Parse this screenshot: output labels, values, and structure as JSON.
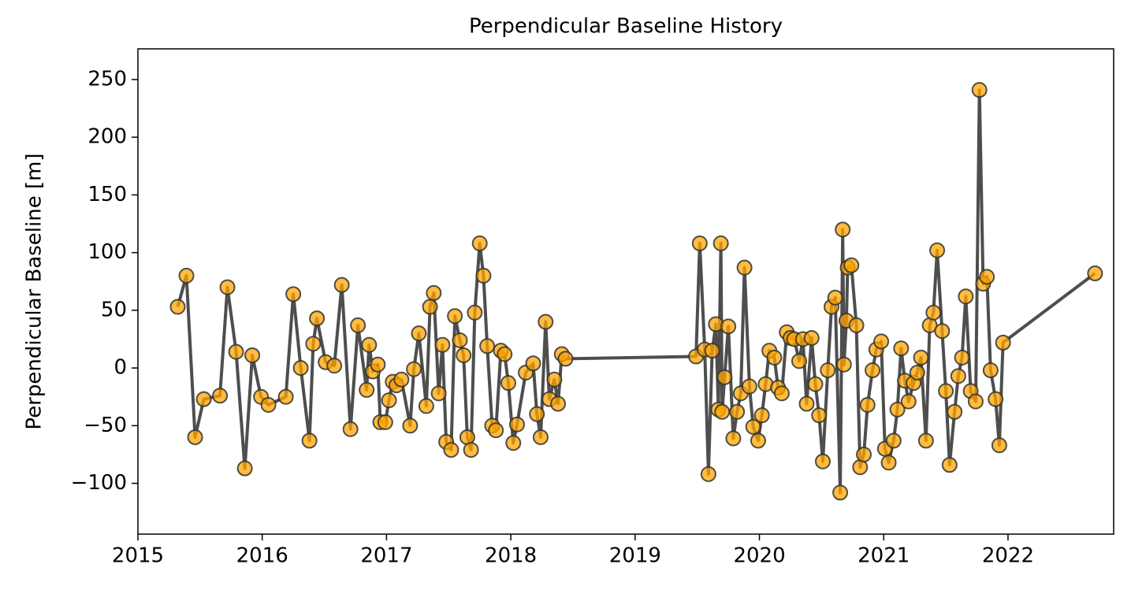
{
  "chart_data": {
    "type": "line",
    "title": "Perpendicular Baseline History",
    "y_label": "Perpendicular Baseline [m]",
    "x": [
      2015.32,
      2015.39,
      2015.46,
      2015.53,
      2015.66,
      2015.72,
      2015.79,
      2015.86,
      2015.92,
      2015.99,
      2016.05,
      2016.19,
      2016.25,
      2016.31,
      2016.38,
      2016.41,
      2016.44,
      2016.51,
      2016.58,
      2016.64,
      2016.71,
      2016.77,
      2016.84,
      2016.86,
      2016.89,
      2016.93,
      2016.95,
      2016.99,
      2017.02,
      2017.05,
      2017.08,
      2017.12,
      2017.19,
      2017.22,
      2017.26,
      2017.32,
      2017.35,
      2017.38,
      2017.42,
      2017.45,
      2017.48,
      2017.52,
      2017.55,
      2017.59,
      2017.62,
      2017.65,
      2017.68,
      2017.71,
      2017.75,
      2017.78,
      2017.81,
      2017.85,
      2017.88,
      2017.92,
      2017.95,
      2017.98,
      2018.02,
      2018.05,
      2018.12,
      2018.18,
      2018.21,
      2018.24,
      2018.28,
      2018.31,
      2018.35,
      2018.38,
      2018.41,
      2018.44,
      2019.49,
      2019.52,
      2019.56,
      2019.59,
      2019.62,
      2019.65,
      2019.67,
      2019.69,
      2019.7,
      2019.72,
      2019.75,
      2019.79,
      2019.82,
      2019.85,
      2019.88,
      2019.92,
      2019.95,
      2019.99,
      2020.02,
      2020.05,
      2020.08,
      2020.12,
      2020.15,
      2020.18,
      2020.22,
      2020.25,
      2020.28,
      2020.32,
      2020.35,
      2020.38,
      2020.42,
      2020.45,
      2020.48,
      2020.51,
      2020.55,
      2020.58,
      2020.61,
      2020.65,
      2020.67,
      2020.68,
      2020.7,
      2020.71,
      2020.74,
      2020.78,
      2020.81,
      2020.84,
      2020.87,
      2020.91,
      2020.94,
      2020.98,
      2021.01,
      2021.04,
      2021.08,
      2021.11,
      2021.14,
      2021.17,
      2021.2,
      2021.24,
      2021.27,
      2021.3,
      2021.34,
      2021.37,
      2021.4,
      2021.43,
      2021.47,
      2021.5,
      2021.53,
      2021.57,
      2021.6,
      2021.63,
      2021.66,
      2021.7,
      2021.74,
      2021.77,
      2021.8,
      2021.83,
      2021.86,
      2021.9,
      2021.93,
      2021.96,
      2022.7
    ],
    "values": [
      53,
      80,
      -60,
      -27,
      -24,
      70,
      14,
      -87,
      11,
      -25,
      -32,
      -25,
      64,
      0,
      -63,
      21,
      43,
      5,
      2,
      72,
      -53,
      37,
      -19,
      20,
      -3,
      3,
      -47,
      -47,
      -28,
      -12,
      -15,
      -10,
      -50,
      -1,
      30,
      -33,
      53,
      65,
      -22,
      20,
      -64,
      -71,
      45,
      24,
      11,
      -60,
      -71,
      48,
      108,
      80,
      19,
      -50,
      -54,
      15,
      12,
      -13,
      -65,
      -49,
      -4,
      4,
      -40,
      -60,
      40,
      -27,
      -10,
      -31,
      12,
      8,
      10,
      108,
      16,
      -92,
      15,
      38,
      -36,
      108,
      -38,
      -8,
      36,
      -61,
      -38,
      -22,
      87,
      -16,
      -51,
      -63,
      -41,
      -14,
      15,
      9,
      -17,
      -22,
      31,
      26,
      25,
      6,
      25,
      -31,
      26,
      -14,
      -41,
      -81,
      -2,
      53,
      61,
      -108,
      120,
      3,
      41,
      87,
      89,
      37,
      -86,
      -75,
      -32,
      -2,
      16,
      23,
      -70,
      -82,
      -63,
      -36,
      17,
      -11,
      -29,
      -13,
      -4,
      9,
      -63,
      37,
      48,
      102,
      32,
      -20,
      -84,
      -38,
      -7,
      9,
      62,
      -20,
      -29,
      241,
      73,
      79,
      -2,
      -27,
      -67,
      22,
      82
    ],
    "line_color": "#444444",
    "marker_color": "#ffa500",
    "xlim": [
      2015.0,
      2022.85
    ],
    "ylim": [
      -144,
      276.6
    ],
    "xticks": [
      2015,
      2016,
      2017,
      2018,
      2019,
      2020,
      2021,
      2022
    ],
    "yticks": [
      {
        "value": -100,
        "label": "−100"
      },
      {
        "value": -50,
        "label": "−50"
      },
      0,
      50,
      100,
      150,
      200,
      250
    ]
  }
}
